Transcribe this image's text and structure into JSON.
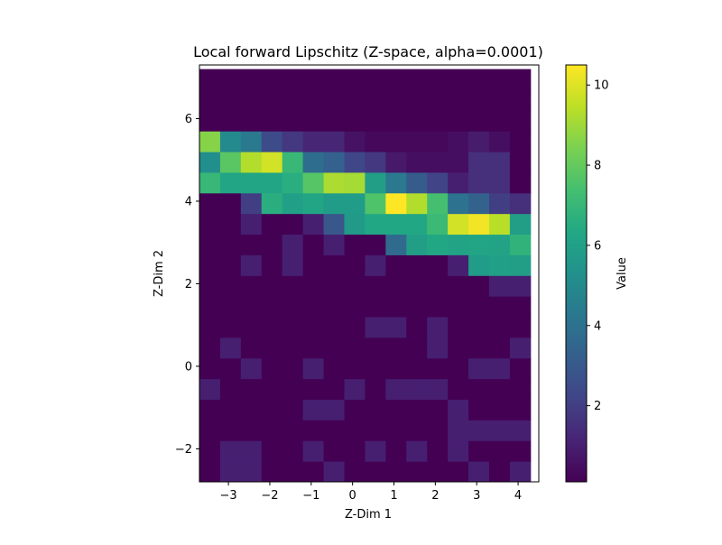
{
  "chart_data": {
    "type": "heatmap",
    "title": "Local forward Lipschitz (Z-space, alpha=0.0001)",
    "xlabel": "Z-Dim 1",
    "ylabel": "Z-Dim 2",
    "colorbar_label": "Value",
    "colormap": "viridis",
    "x_edges": [
      -3.7,
      -3.2,
      -2.7,
      -2.2,
      -1.7,
      -1.2,
      -0.7,
      -0.2,
      0.3,
      0.8,
      1.3,
      1.8,
      2.3,
      2.8,
      3.3,
      3.8,
      4.3
    ],
    "y_edges": [
      -2.8,
      -2.3,
      -1.8,
      -1.3,
      -0.8,
      -0.3,
      0.2,
      0.7,
      1.2,
      1.7,
      2.2,
      2.7,
      3.2,
      3.7,
      4.2,
      4.7,
      5.2,
      5.7,
      6.2,
      6.7,
      7.2
    ],
    "xlim": [
      -3.7,
      4.5
    ],
    "ylim": [
      -2.8,
      7.3
    ],
    "xticks": [
      -3,
      -2,
      -1,
      0,
      1,
      2,
      3,
      4
    ],
    "yticks": [
      -2,
      0,
      2,
      4,
      6
    ],
    "clim": [
      0.1,
      10.5
    ],
    "colorbar_ticks": [
      2,
      4,
      6,
      8,
      10
    ],
    "tick_labels": {
      "x": [
        "−3",
        "−2",
        "−1",
        "0",
        "1",
        "2",
        "3",
        "4"
      ],
      "y": [
        "−2",
        "0",
        "2",
        "4",
        "6"
      ],
      "colorbar": [
        "2",
        "4",
        "6",
        "8",
        "10"
      ]
    },
    "grid": false,
    "z": [
      [
        0.1,
        1.0,
        1.0,
        0.1,
        0.1,
        0.1,
        1.0,
        0.1,
        0.1,
        0.1,
        0.1,
        0.1,
        0.1,
        1.0,
        0.1,
        1.0,
        0.1
      ],
      [
        0.1,
        1.0,
        1.0,
        0.1,
        0.1,
        1.0,
        0.1,
        0.1,
        1.0,
        0.1,
        1.0,
        0.1,
        1.0,
        0.1,
        0.1,
        0.1,
        0.1
      ],
      [
        0.1,
        0.1,
        0.1,
        0.1,
        0.1,
        0.1,
        0.1,
        0.1,
        0.1,
        0.1,
        0.1,
        0.1,
        1.0,
        1.0,
        1.0,
        1.0,
        1.0
      ],
      [
        0.1,
        0.1,
        0.1,
        0.1,
        0.1,
        1.0,
        1.0,
        0.1,
        0.1,
        0.1,
        0.1,
        0.1,
        1.0,
        0.1,
        0.1,
        0.1,
        0.1
      ],
      [
        1.0,
        0.1,
        0.1,
        0.1,
        0.1,
        0.1,
        0.1,
        1.0,
        0.1,
        1.0,
        1.0,
        1.0,
        0.1,
        0.1,
        0.1,
        0.1,
        0.1
      ],
      [
        0.1,
        0.1,
        1.0,
        0.1,
        0.1,
        1.0,
        0.1,
        0.1,
        0.1,
        0.1,
        0.1,
        0.1,
        0.1,
        1.0,
        1.0,
        0.1,
        1.0
      ],
      [
        0.1,
        1.0,
        0.1,
        0.1,
        0.1,
        0.1,
        0.1,
        0.1,
        0.1,
        0.1,
        0.1,
        1.0,
        0.1,
        0.1,
        0.1,
        1.0,
        1.0
      ],
      [
        0.1,
        0.1,
        0.1,
        0.1,
        0.1,
        0.1,
        0.1,
        0.1,
        1.0,
        1.0,
        0.1,
        1.0,
        0.1,
        0.1,
        0.1,
        0.1,
        0.1
      ],
      [
        0.1,
        0.1,
        0.1,
        0.1,
        0.1,
        0.1,
        0.1,
        0.1,
        0.1,
        0.1,
        0.1,
        0.1,
        0.1,
        0.1,
        0.1,
        0.1,
        0.1
      ],
      [
        0.1,
        0.1,
        0.1,
        0.1,
        0.1,
        0.1,
        0.1,
        0.1,
        0.1,
        0.1,
        0.1,
        0.1,
        0.1,
        0.1,
        1.0,
        1.0,
        1.0
      ],
      [
        0.1,
        0.1,
        1.0,
        0.1,
        1.0,
        0.1,
        0.1,
        0.1,
        1.0,
        0.1,
        0.1,
        0.1,
        1.0,
        5.8,
        6.0,
        5.9,
        5.9
      ],
      [
        0.1,
        0.1,
        0.1,
        0.1,
        1.0,
        0.1,
        1.0,
        0.1,
        0.1,
        3.7,
        5.9,
        6.3,
        6.1,
        6.2,
        6.1,
        6.8,
        8.6
      ],
      [
        0.1,
        0.1,
        1.0,
        0.1,
        0.1,
        1.0,
        2.9,
        5.7,
        6.3,
        6.3,
        6.3,
        7.1,
        9.8,
        10.3,
        9.4,
        5.9,
        5.9
      ],
      [
        0.1,
        0.1,
        2.0,
        6.6,
        6.0,
        6.2,
        5.8,
        5.8,
        7.6,
        10.5,
        9.3,
        7.4,
        4.0,
        3.4,
        2.0,
        1.5,
        1.5
      ],
      [
        7.0,
        6.2,
        6.2,
        6.2,
        6.6,
        7.7,
        9.2,
        9.1,
        5.9,
        4.3,
        3.1,
        2.2,
        1.0,
        1.5,
        1.5,
        0.1,
        0.1
      ],
      [
        5.2,
        7.8,
        9.3,
        9.8,
        7.0,
        3.8,
        3.3,
        2.3,
        1.8,
        0.8,
        0.5,
        0.5,
        0.5,
        1.5,
        1.5,
        0.1,
        0.1
      ],
      [
        8.6,
        5.0,
        4.3,
        2.5,
        1.8,
        1.2,
        1.2,
        0.6,
        0.3,
        0.3,
        0.3,
        0.3,
        0.5,
        0.9,
        0.5,
        0.1,
        0.1
      ],
      [
        0.1,
        0.1,
        0.1,
        0.1,
        0.1,
        0.1,
        0.1,
        0.1,
        0.1,
        0.1,
        0.1,
        0.1,
        0.1,
        0.1,
        0.1,
        0.1,
        0.1
      ],
      [
        0.1,
        0.1,
        0.1,
        0.1,
        0.1,
        0.1,
        0.1,
        0.1,
        0.1,
        0.1,
        0.1,
        0.1,
        0.1,
        0.1,
        0.1,
        0.1,
        0.1
      ],
      [
        0.1,
        0.1,
        0.1,
        0.1,
        0.1,
        0.1,
        0.1,
        0.1,
        0.1,
        0.1,
        0.1,
        0.1,
        0.1,
        0.1,
        0.1,
        0.1,
        0.1
      ]
    ]
  }
}
